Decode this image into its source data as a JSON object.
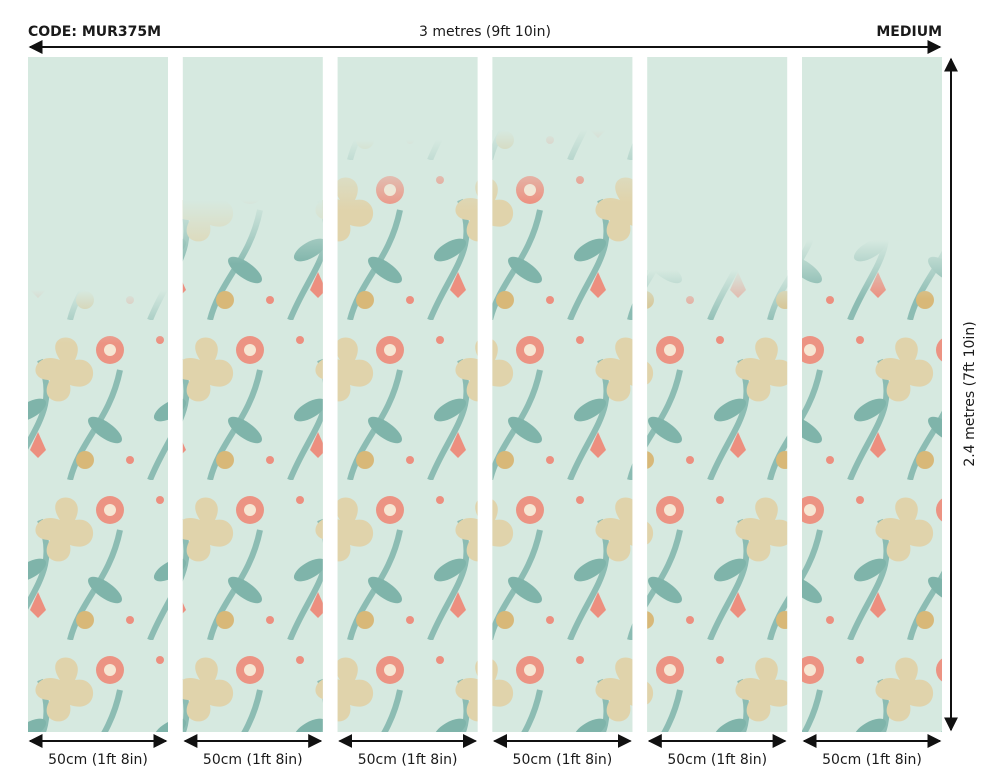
{
  "code": "CODE: MUR375M",
  "total_width": "3 metres (9ft 10in)",
  "size": "MEDIUM",
  "height": "2.4 metres (7ft 10in)",
  "panels": [
    {
      "label": "50cm (1ft 8in)"
    },
    {
      "label": "50cm (1ft 8in)"
    },
    {
      "label": "50cm (1ft 8in)"
    },
    {
      "label": "50cm (1ft 8in)"
    },
    {
      "label": "50cm (1ft 8in)"
    },
    {
      "label": "50cm (1ft 8in)"
    }
  ]
}
